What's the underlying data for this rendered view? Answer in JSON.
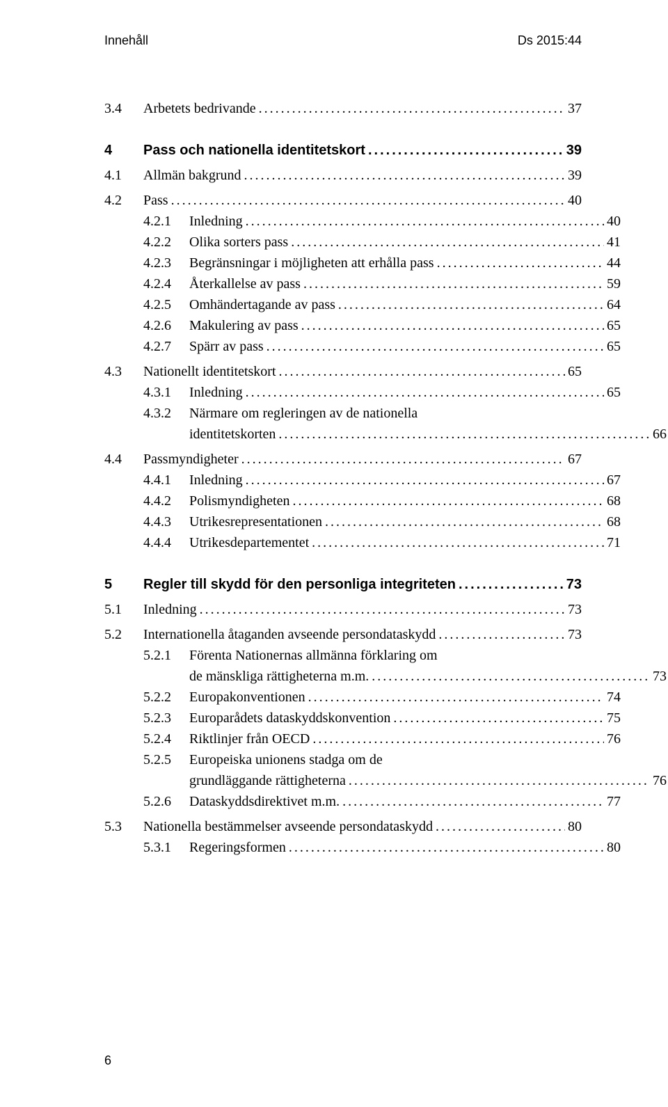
{
  "header": {
    "left": "Innehåll",
    "right": "Ds 2015:44"
  },
  "dots": "........................................................................................................................................................",
  "rows": [
    {
      "type": "entry",
      "level": 2,
      "bold": false,
      "num": "3.4",
      "title": "Arbetets bedrivande",
      "page": "37"
    },
    {
      "type": "gap-lg"
    },
    {
      "type": "entry",
      "level": 1,
      "bold": true,
      "num": "4",
      "title": "Pass och nationella identitetskort",
      "page": "39"
    },
    {
      "type": "gap-sm"
    },
    {
      "type": "entry",
      "level": 2,
      "bold": false,
      "num": "4.1",
      "title": "Allmän bakgrund",
      "page": "39"
    },
    {
      "type": "gap-sm"
    },
    {
      "type": "entry",
      "level": 2,
      "bold": false,
      "num": "4.2",
      "title": "Pass",
      "page": "40"
    },
    {
      "type": "entry",
      "level": 3,
      "bold": false,
      "num": "4.2.1",
      "title": "Inledning",
      "page": "40"
    },
    {
      "type": "entry",
      "level": 3,
      "bold": false,
      "num": "4.2.2",
      "title": "Olika sorters pass",
      "page": "41"
    },
    {
      "type": "entry",
      "level": 3,
      "bold": false,
      "num": "4.2.3",
      "title": "Begränsningar i möjligheten att erhålla pass",
      "page": "44"
    },
    {
      "type": "entry",
      "level": 3,
      "bold": false,
      "num": "4.2.4",
      "title": "Återkallelse av pass",
      "page": "59"
    },
    {
      "type": "entry",
      "level": 3,
      "bold": false,
      "num": "4.2.5",
      "title": "Omhändertagande av pass",
      "page": "64"
    },
    {
      "type": "entry",
      "level": 3,
      "bold": false,
      "num": "4.2.6",
      "title": "Makulering av pass",
      "page": "65"
    },
    {
      "type": "entry",
      "level": 3,
      "bold": false,
      "num": "4.2.7",
      "title": "Spärr av pass",
      "page": "65"
    },
    {
      "type": "gap-sm"
    },
    {
      "type": "entry",
      "level": 2,
      "bold": false,
      "num": "4.3",
      "title": "Nationellt identitetskort",
      "page": "65"
    },
    {
      "type": "entry",
      "level": 3,
      "bold": false,
      "num": "4.3.1",
      "title": "Inledning",
      "page": "65"
    },
    {
      "type": "wrap1",
      "level": 3,
      "bold": false,
      "num": "4.3.2",
      "title": "Närmare om regleringen av de nationella"
    },
    {
      "type": "wrap2",
      "bold": false,
      "title": "identitetskorten",
      "page": "66"
    },
    {
      "type": "gap-sm"
    },
    {
      "type": "entry",
      "level": 2,
      "bold": false,
      "num": "4.4",
      "title": "Passmyndigheter",
      "page": "67"
    },
    {
      "type": "entry",
      "level": 3,
      "bold": false,
      "num": "4.4.1",
      "title": "Inledning",
      "page": "67"
    },
    {
      "type": "entry",
      "level": 3,
      "bold": false,
      "num": "4.4.2",
      "title": "Polismyndigheten",
      "page": "68"
    },
    {
      "type": "entry",
      "level": 3,
      "bold": false,
      "num": "4.4.3",
      "title": "Utrikesrepresentationen",
      "page": "68"
    },
    {
      "type": "entry",
      "level": 3,
      "bold": false,
      "num": "4.4.4",
      "title": "Utrikesdepartementet",
      "page": "71"
    },
    {
      "type": "gap-lg"
    },
    {
      "type": "entry",
      "level": 1,
      "bold": true,
      "num": "5",
      "title": "Regler till skydd för den personliga integriteten",
      "page": "73"
    },
    {
      "type": "gap-sm"
    },
    {
      "type": "entry",
      "level": 2,
      "bold": false,
      "num": "5.1",
      "title": "Inledning",
      "page": "73"
    },
    {
      "type": "gap-sm"
    },
    {
      "type": "entry",
      "level": 2,
      "bold": false,
      "num": "5.2",
      "title": "Internationella åtaganden avseende persondataskydd",
      "page": "73"
    },
    {
      "type": "wrap1",
      "level": 3,
      "bold": false,
      "num": "5.2.1",
      "title": "Förenta Nationernas allmänna förklaring om"
    },
    {
      "type": "wrap2",
      "bold": false,
      "title": "de mänskliga rättigheterna m.m.",
      "page": "73"
    },
    {
      "type": "entry",
      "level": 3,
      "bold": false,
      "num": "5.2.2",
      "title": "Europakonventionen",
      "page": "74"
    },
    {
      "type": "entry",
      "level": 3,
      "bold": false,
      "num": "5.2.3",
      "title": "Europarådets dataskyddskonvention",
      "page": "75"
    },
    {
      "type": "entry",
      "level": 3,
      "bold": false,
      "num": "5.2.4",
      "title": "Riktlinjer från OECD",
      "page": "76"
    },
    {
      "type": "wrap1",
      "level": 3,
      "bold": false,
      "num": "5.2.5",
      "title": "Europeiska unionens stadga om de"
    },
    {
      "type": "wrap2",
      "bold": false,
      "title": "grundläggande rättigheterna",
      "page": "76"
    },
    {
      "type": "entry",
      "level": 3,
      "bold": false,
      "num": "5.2.6",
      "title": "Dataskyddsdirektivet m.m.",
      "page": "77"
    },
    {
      "type": "gap-sm"
    },
    {
      "type": "entry",
      "level": 2,
      "bold": false,
      "num": "5.3",
      "title": "Nationella bestämmelser avseende persondataskydd",
      "page": "80"
    },
    {
      "type": "entry",
      "level": 3,
      "bold": false,
      "num": "5.3.1",
      "title": "Regeringsformen",
      "page": "80"
    }
  ],
  "page_number": "6"
}
